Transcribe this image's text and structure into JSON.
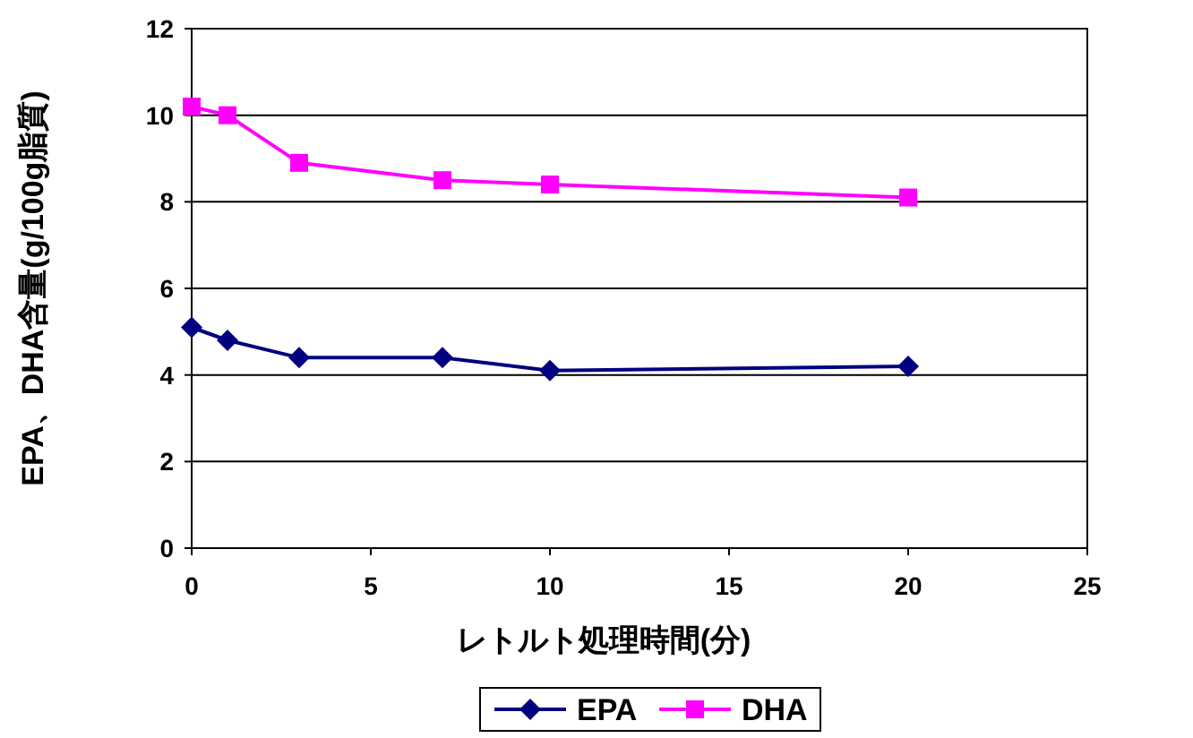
{
  "chart_data": {
    "type": "line",
    "xlabel": "レトルト処理時間(分)",
    "ylabel": "EPA、DHA含量(g/100g脂質)",
    "x": [
      0,
      1,
      3,
      7,
      10,
      20
    ],
    "series": [
      {
        "name": "EPA",
        "color": "#000080",
        "marker": "diamond",
        "values": [
          5.1,
          4.8,
          4.4,
          4.4,
          4.1,
          4.2
        ]
      },
      {
        "name": "DHA",
        "color": "#ff00ff",
        "marker": "square",
        "values": [
          10.2,
          10.0,
          8.9,
          8.5,
          8.4,
          8.1
        ]
      }
    ],
    "xlim": [
      0,
      25
    ],
    "xticks": [
      0,
      5,
      10,
      15,
      20,
      25
    ],
    "ylim": [
      0,
      12
    ],
    "yticks": [
      0,
      2,
      4,
      6,
      8,
      10,
      12
    ],
    "grid": "y",
    "legend": "bottom"
  }
}
